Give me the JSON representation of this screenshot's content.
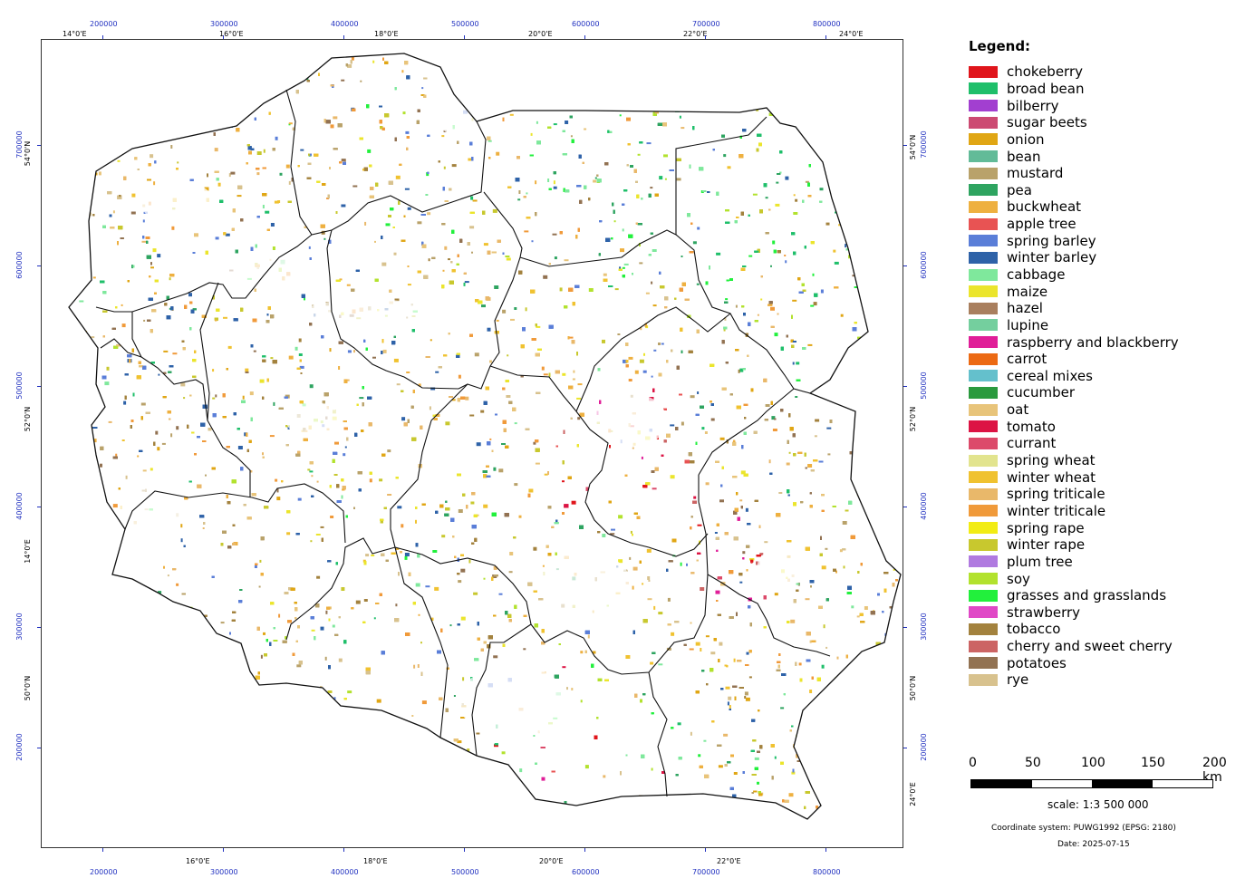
{
  "map": {
    "grid_top": [
      {
        "text": "14°0'E",
        "kind": "dark"
      },
      {
        "text": "200000",
        "kind": "blue"
      },
      {
        "text": "16°0'E",
        "kind": "dark"
      },
      {
        "text": "300000",
        "kind": "blue"
      },
      {
        "text": "400000",
        "kind": "blue"
      },
      {
        "text": "18°0'E",
        "kind": "dark"
      },
      {
        "text": "500000",
        "kind": "blue"
      },
      {
        "text": "20°0'E",
        "kind": "dark"
      },
      {
        "text": "600000",
        "kind": "blue"
      },
      {
        "text": "700000",
        "kind": "blue"
      },
      {
        "text": "22°0'E",
        "kind": "dark"
      },
      {
        "text": "800000",
        "kind": "blue"
      },
      {
        "text": "24°0'E",
        "kind": "dark"
      }
    ],
    "grid_bottom": [
      {
        "text": "200000",
        "kind": "blue"
      },
      {
        "text": "16°0'E",
        "kind": "dark"
      },
      {
        "text": "300000",
        "kind": "blue"
      },
      {
        "text": "400000",
        "kind": "blue"
      },
      {
        "text": "18°0'E",
        "kind": "dark"
      },
      {
        "text": "500000",
        "kind": "blue"
      },
      {
        "text": "20°0'E",
        "kind": "dark"
      },
      {
        "text": "600000",
        "kind": "blue"
      },
      {
        "text": "700000",
        "kind": "blue"
      },
      {
        "text": "22°0'E",
        "kind": "dark"
      },
      {
        "text": "800000",
        "kind": "blue"
      }
    ],
    "grid_left": [
      {
        "text": "700000",
        "kind": "blue"
      },
      {
        "text": "54°0'N",
        "kind": "dark"
      },
      {
        "text": "600000",
        "kind": "blue"
      },
      {
        "text": "500000",
        "kind": "blue"
      },
      {
        "text": "52°0'N",
        "kind": "dark"
      },
      {
        "text": "400000",
        "kind": "blue"
      },
      {
        "text": "14°0'E",
        "kind": "dark"
      },
      {
        "text": "300000",
        "kind": "blue"
      },
      {
        "text": "50°0'N",
        "kind": "dark"
      },
      {
        "text": "200000",
        "kind": "blue"
      }
    ],
    "grid_right": [
      {
        "text": "54°0'N",
        "kind": "dark"
      },
      {
        "text": "700000",
        "kind": "blue"
      },
      {
        "text": "600000",
        "kind": "blue"
      },
      {
        "text": "500000",
        "kind": "blue"
      },
      {
        "text": "52°0'N",
        "kind": "dark"
      },
      {
        "text": "400000",
        "kind": "blue"
      },
      {
        "text": "300000",
        "kind": "blue"
      },
      {
        "text": "50°0'N",
        "kind": "dark"
      },
      {
        "text": "200000",
        "kind": "blue"
      },
      {
        "text": "24°0'E",
        "kind": "dark"
      }
    ]
  },
  "legend": {
    "title": "Legend:",
    "items": [
      {
        "label": "chokeberry",
        "color": "#e0151b"
      },
      {
        "label": "broad bean",
        "color": "#1fbf6a"
      },
      {
        "label": "bilberry",
        "color": "#a23fd0"
      },
      {
        "label": "sugar beets",
        "color": "#cc4a72"
      },
      {
        "label": "onion",
        "color": "#e0a614"
      },
      {
        "label": "bean",
        "color": "#62bb98"
      },
      {
        "label": "mustard",
        "color": "#b9a26a"
      },
      {
        "label": "pea",
        "color": "#2ea460"
      },
      {
        "label": "buckwheat",
        "color": "#eeb040"
      },
      {
        "label": "apple tree",
        "color": "#e85353"
      },
      {
        "label": "spring barley",
        "color": "#5a7ed8"
      },
      {
        "label": "winter barley",
        "color": "#2e62a8"
      },
      {
        "label": "cabbage",
        "color": "#7fe89c"
      },
      {
        "label": "maize",
        "color": "#ebe52c"
      },
      {
        "label": "hazel",
        "color": "#a97f5e"
      },
      {
        "label": "lupine",
        "color": "#74cf9e"
      },
      {
        "label": "raspberry and blackberry",
        "color": "#e01e98"
      },
      {
        "label": "carrot",
        "color": "#ec6a14"
      },
      {
        "label": "cereal mixes",
        "color": "#64c0cc"
      },
      {
        "label": "cucumber",
        "color": "#2a9a3e"
      },
      {
        "label": "oat",
        "color": "#e8c47a"
      },
      {
        "label": "tomato",
        "color": "#dc1444"
      },
      {
        "label": "currant",
        "color": "#dc4a6a"
      },
      {
        "label": "spring wheat",
        "color": "#e2e48e"
      },
      {
        "label": "winter wheat",
        "color": "#f0c230"
      },
      {
        "label": "spring triticale",
        "color": "#e9b86a"
      },
      {
        "label": "winter triticale",
        "color": "#f09a3a"
      },
      {
        "label": "spring rape",
        "color": "#f2ec14"
      },
      {
        "label": "winter rape",
        "color": "#c8c82e"
      },
      {
        "label": "plum tree",
        "color": "#b07ae0"
      },
      {
        "label": "soy",
        "color": "#b2e22e"
      },
      {
        "label": "grasses and grasslands",
        "color": "#22f03c"
      },
      {
        "label": "strawberry",
        "color": "#e048c6"
      },
      {
        "label": "tobacco",
        "color": "#a3823e"
      },
      {
        "label": "cherry and sweet cherry",
        "color": "#cc6464"
      },
      {
        "label": "potatoes",
        "color": "#927252"
      },
      {
        "label": "rye",
        "color": "#d8c28e"
      }
    ]
  },
  "scalebar": {
    "ticks": [
      "0",
      "50",
      "100",
      "150",
      "200 km"
    ],
    "scale_text": "scale:  1:3 500 000"
  },
  "footer": {
    "coordinate_system": "Coordinate system: PUWG1992 (EPSG: 2180)",
    "date": "Date: 2025-07-15"
  }
}
